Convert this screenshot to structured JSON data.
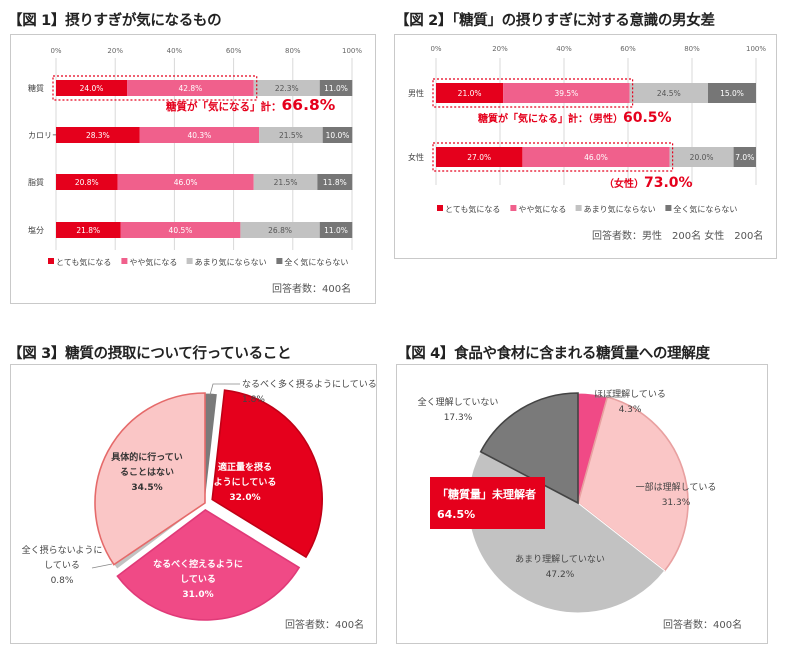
{
  "colors": {
    "very": "#e5001c",
    "somewhat": "#f0608c",
    "not_much": "#c2c2c2",
    "not_at_all": "#767676",
    "pink_light": "#fac6c6",
    "pink_mid": "#f04a86",
    "gray_light": "#c2c2c2",
    "gray_dark": "#7a7a7a"
  },
  "fig1": {
    "heading": "【図 1】摂りすぎが気になるもの",
    "ticks": [
      "0%",
      "20%",
      "40%",
      "60%",
      "80%",
      "100%"
    ],
    "respondents": "回答者数：400名",
    "callout": {
      "prefix": "糖質が「気になる」計：",
      "value": "66.8%"
    }
  },
  "fig2": {
    "heading": "【図 2】「糖質」の摂りすぎに対する意識の男女差",
    "ticks": [
      "0%",
      "20%",
      "40%",
      "60%",
      "80%",
      "100%"
    ],
    "respondents": "回答者数：男性　200名  女性　200名",
    "callout_male": {
      "prefix": "糖質が「気になる」計：（男性）",
      "value": "60.5%"
    },
    "callout_female": {
      "prefix": "（女性）",
      "value": "73.0%"
    }
  },
  "fig3": {
    "heading": "【図 3】糖質の摂取について行っていること",
    "respondents": "回答者数：400名"
  },
  "fig4": {
    "heading": "【図 4】食品や食材に含まれる糖質量への理解度",
    "respondents": "回答者数：400名",
    "callout": {
      "line1": "「糖質量」未理解者",
      "line2": "64.5%"
    }
  },
  "chart_data": [
    {
      "type": "bar",
      "orientation": "horizontal",
      "stacked": true,
      "title": "【図 1】摂りすぎが気になるもの",
      "categories": [
        "糖質",
        "カロリー",
        "脂質",
        "塩分"
      ],
      "xlim": [
        0,
        100
      ],
      "series": [
        {
          "name": "とても気になる",
          "values": [
            24.0,
            28.3,
            20.8,
            21.8
          ],
          "color": "#e5001c"
        },
        {
          "name": "やや気になる",
          "values": [
            42.8,
            40.3,
            46.0,
            40.5
          ],
          "color": "#f0608c"
        },
        {
          "name": "あまり気にならない",
          "values": [
            22.3,
            21.5,
            21.5,
            26.8
          ],
          "color": "#c2c2c2"
        },
        {
          "name": "全く気にならない",
          "values": [
            11.0,
            10.0,
            11.8,
            11.0
          ],
          "color": "#767676"
        }
      ],
      "legend": "bottom"
    },
    {
      "type": "bar",
      "orientation": "horizontal",
      "stacked": true,
      "title": "【図 2】「糖質」の摂りすぎに対する意識の男女差",
      "categories": [
        "男性",
        "女性"
      ],
      "xlim": [
        0,
        100
      ],
      "series": [
        {
          "name": "とても気になる",
          "values": [
            21.0,
            27.0
          ],
          "color": "#e5001c"
        },
        {
          "name": "やや気になる",
          "values": [
            39.5,
            46.0
          ],
          "color": "#f0608c"
        },
        {
          "name": "あまり気にならない",
          "values": [
            24.5,
            20.0
          ],
          "color": "#c2c2c2"
        },
        {
          "name": "全く気にならない",
          "values": [
            15.0,
            7.0
          ],
          "color": "#767676"
        }
      ],
      "legend": "bottom"
    },
    {
      "type": "pie",
      "title": "【図 3】糖質の摂取について行っていること",
      "slices": [
        {
          "label": "なるべく多く摂るようにしている",
          "line1": "なるべく多く摂るようにしている",
          "line2": "",
          "value": 1.8,
          "pct": "1.8%",
          "color": "#7a7a7a"
        },
        {
          "label": "適正量を摂るようにしている",
          "line1": "適正量を摂る",
          "line2": "ようにしている",
          "value": 32.0,
          "pct": "32.0%",
          "color": "#e5001c"
        },
        {
          "label": "なるべく控えるようにしている",
          "line1": "なるべく控えるように",
          "line2": "している",
          "value": 31.0,
          "pct": "31.0%",
          "color": "#f04a86"
        },
        {
          "label": "全く摂らないようにしている",
          "line1": "全く摂らないように",
          "line2": "している",
          "value": 0.8,
          "pct": "0.8%",
          "color": "#c2c2c2"
        },
        {
          "label": "具体的に行っていることはない",
          "line1": "具体的に行ってい",
          "line2": "ることはない",
          "value": 34.5,
          "pct": "34.5%",
          "color": "#fac6c6"
        }
      ]
    },
    {
      "type": "pie",
      "title": "【図 4】食品や食材に含まれる糖質量への理解度",
      "slices": [
        {
          "label": "ほぼ理解している",
          "line1": "ほぼ理解している",
          "line2": "",
          "value": 4.3,
          "pct": "4.3%",
          "color": "#f04a86"
        },
        {
          "label": "一部は理解している",
          "line1": "一部は理解している",
          "line2": "",
          "value": 31.3,
          "pct": "31.3%",
          "color": "#fac6c6"
        },
        {
          "label": "あまり理解していない",
          "line1": "あまり理解していない",
          "line2": "",
          "value": 47.2,
          "pct": "47.2%",
          "color": "#c2c2c2"
        },
        {
          "label": "全く理解していない",
          "line1": "全く理解していない",
          "line2": "",
          "value": 17.3,
          "pct": "17.3%",
          "color": "#7a7a7a"
        }
      ]
    }
  ]
}
